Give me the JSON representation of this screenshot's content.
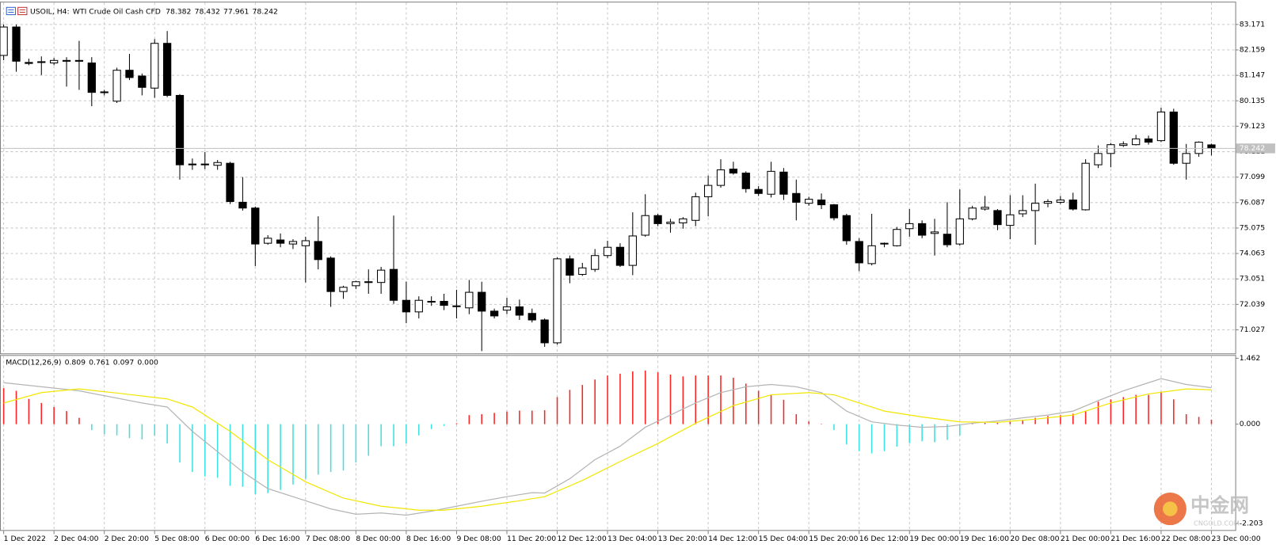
{
  "chart_data": [
    {
      "type": "candlestick",
      "title": "USOIL, H4:",
      "subtitle": "WTI Crude Oil Cash CFD",
      "categories": [
        "1 Dec 2022",
        null,
        null,
        null,
        "2 Dec 04:00",
        null,
        null,
        null,
        "2 Dec 20:00",
        null,
        null,
        null,
        "5 Dec 08:00",
        null,
        null,
        null,
        "6 Dec 00:00",
        null,
        null,
        null,
        "6 Dec 16:00",
        null,
        null,
        null,
        "7 Dec 08:00",
        null,
        null,
        null,
        "8 Dec 00:00",
        null,
        null,
        null,
        "8 Dec 16:00",
        null,
        null,
        null,
        "9 Dec 08:00",
        null,
        null,
        null,
        "11 Dec 20:00",
        null,
        null,
        null,
        "12 Dec 12:00",
        null,
        null,
        null,
        "13 Dec 04:00",
        null,
        null,
        null,
        "13 Dec 20:00",
        null,
        null,
        null,
        "14 Dec 12:00",
        null,
        null,
        null,
        "15 Dec 04:00",
        null,
        null,
        null,
        "15 Dec 20:00",
        null,
        null,
        null,
        "16 Dec 12:00",
        null,
        null,
        null,
        "19 Dec 00:00",
        null,
        null,
        null,
        "19 Dec 16:00",
        null,
        null,
        null,
        "20 Dec 08:00",
        null,
        null,
        null,
        "21 Dec 00:00",
        null,
        null,
        null,
        "21 Dec 16:00",
        null,
        null,
        null,
        "22 Dec 08:00",
        null,
        null,
        null,
        "23 Dec 00:00"
      ],
      "open": [
        81.94,
        83.07,
        81.66,
        81.67,
        81.64,
        81.71,
        81.74,
        81.64,
        80.49,
        80.12,
        81.35,
        81.12,
        80.64,
        82.42,
        80.35,
        77.62,
        77.62,
        77.57,
        77.65,
        76.1,
        75.87,
        74.47,
        74.6,
        74.44,
        74.37,
        74.54,
        73.88,
        72.55,
        72.78,
        72.91,
        72.91,
        73.43,
        72.2,
        71.74,
        72.13,
        72.16,
        71.96,
        71.9,
        72.52,
        71.77,
        71.81,
        71.94,
        71.68,
        71.42,
        70.51,
        73.85,
        73.23,
        73.43,
        73.98,
        74.31,
        73.59,
        74.79,
        75.57,
        75.25,
        75.28,
        75.38,
        76.32,
        76.77,
        77.42,
        77.26,
        76.61,
        76.42,
        77.3,
        76.45,
        76.06,
        76.19,
        76.0,
        75.57,
        74.54,
        73.66,
        74.44,
        74.37,
        75.05,
        75.25,
        74.86,
        74.83,
        74.44,
        75.44,
        75.83,
        75.77,
        75.18,
        75.64,
        75.77,
        76.06,
        76.1,
        76.19,
        75.8,
        77.59,
        78.04,
        78.36,
        78.39,
        78.62,
        78.55,
        79.69,
        77.65,
        78.04,
        78.382
      ],
      "high": [
        83.17,
        83.17,
        81.81,
        81.9,
        81.84,
        81.87,
        82.52,
        81.87,
        80.57,
        81.45,
        82.0,
        81.22,
        82.59,
        82.91,
        80.4,
        77.84,
        78.1,
        77.78,
        77.71,
        77.1,
        75.93,
        74.79,
        74.86,
        74.63,
        74.73,
        75.54,
        73.95,
        72.78,
        72.98,
        73.43,
        73.53,
        75.57,
        72.94,
        72.36,
        72.36,
        72.46,
        72.62,
        73.01,
        72.94,
        71.87,
        72.3,
        72.23,
        71.87,
        71.48,
        73.91,
        73.98,
        73.69,
        74.24,
        74.57,
        74.47,
        75.7,
        76.42,
        75.64,
        75.44,
        75.51,
        76.48,
        77.16,
        77.81,
        77.71,
        77.33,
        76.74,
        77.71,
        77.46,
        77.0,
        76.32,
        76.45,
        76.03,
        75.64,
        74.67,
        75.64,
        74.5,
        75.12,
        75.83,
        75.38,
        75.44,
        76.1,
        76.61,
        75.96,
        76.35,
        75.83,
        76.38,
        76.38,
        76.84,
        76.22,
        76.35,
        76.48,
        77.81,
        78.36,
        78.46,
        78.52,
        78.78,
        78.75,
        79.86,
        79.82,
        78.42,
        78.52,
        78.432
      ],
      "low": [
        81.75,
        81.29,
        81.55,
        81.16,
        81.55,
        80.7,
        80.57,
        79.92,
        80.35,
        80.05,
        80.96,
        80.35,
        80.25,
        80.28,
        77.0,
        77.39,
        77.42,
        77.39,
        76.03,
        75.77,
        73.56,
        74.41,
        74.31,
        74.24,
        72.91,
        73.43,
        71.94,
        72.26,
        72.65,
        72.46,
        72.46,
        72.06,
        71.29,
        71.48,
        71.98,
        71.81,
        71.48,
        71.65,
        70.18,
        71.48,
        71.65,
        71.42,
        71.32,
        70.35,
        70.44,
        72.88,
        73.17,
        73.33,
        73.88,
        73.53,
        73.2,
        74.73,
        75.15,
        74.89,
        75.05,
        75.15,
        75.54,
        76.68,
        77.2,
        76.48,
        76.35,
        76.29,
        76.19,
        75.38,
        75.96,
        75.83,
        75.38,
        74.41,
        73.36,
        73.59,
        74.31,
        74.34,
        74.73,
        74.67,
        73.98,
        74.31,
        74.37,
        75.38,
        75.77,
        74.99,
        74.63,
        75.51,
        74.41,
        75.9,
        76.03,
        75.77,
        75.77,
        77.46,
        77.49,
        78.3,
        78.36,
        78.39,
        78.49,
        77.59,
        77.0,
        77.91,
        77.961
      ],
      "close": [
        83.07,
        81.71,
        81.62,
        81.69,
        81.74,
        81.74,
        81.71,
        80.47,
        80.47,
        81.35,
        81.06,
        80.67,
        82.42,
        80.35,
        77.59,
        77.62,
        77.62,
        77.68,
        76.13,
        75.87,
        74.44,
        74.67,
        74.47,
        74.54,
        74.57,
        73.82,
        72.55,
        72.72,
        72.94,
        72.94,
        73.4,
        72.2,
        71.74,
        72.2,
        72.16,
        72.0,
        71.98,
        72.52,
        71.77,
        71.58,
        71.94,
        71.61,
        71.42,
        70.51,
        73.85,
        73.2,
        73.49,
        73.98,
        74.31,
        73.59,
        74.76,
        75.57,
        75.25,
        75.31,
        75.44,
        76.32,
        76.77,
        77.39,
        77.26,
        76.64,
        76.45,
        77.33,
        76.42,
        76.1,
        76.22,
        76.0,
        75.48,
        74.57,
        73.69,
        74.37,
        74.47,
        75.02,
        75.25,
        74.79,
        74.92,
        74.41,
        75.44,
        75.87,
        75.9,
        75.21,
        75.6,
        75.77,
        76.06,
        76.13,
        76.19,
        75.83,
        77.65,
        78.04,
        78.39,
        78.42,
        78.62,
        78.49,
        79.69,
        77.65,
        78.04,
        78.49,
        78.242
      ],
      "up_color": "#ffffff",
      "down_color": "#000000",
      "edge_color": "#000000",
      "ylim": [
        70.09,
        83.98
      ],
      "yticks": [
        83.171,
        82.159,
        81.147,
        80.135,
        79.123,
        78.111,
        77.099,
        76.087,
        75.075,
        74.063,
        73.051,
        72.039,
        71.027
      ],
      "grid": true,
      "last_price_line": true,
      "last_price_color": "#c0c0c0"
    },
    {
      "type": "macd",
      "title": "MACD(12,26,9)",
      "readout": [
        "0.809",
        "0.761",
        "0.097",
        "0.000"
      ],
      "histogram": {
        "positive_color": "#ff2020",
        "negative_color": "#3ee0e0",
        "values": [
          0.8,
          0.74,
          0.56,
          0.47,
          0.38,
          0.29,
          0.14,
          -0.13,
          -0.22,
          -0.25,
          -0.31,
          -0.34,
          -0.25,
          -0.43,
          -0.85,
          -1.06,
          -1.16,
          -1.19,
          -1.37,
          -1.39,
          -1.55,
          -1.53,
          -1.46,
          -1.34,
          -1.21,
          -1.12,
          -1.06,
          -1.03,
          -0.85,
          -0.7,
          -0.49,
          -0.49,
          -0.43,
          -0.25,
          -0.11,
          -0.04,
          0.02,
          0.2,
          0.22,
          0.25,
          0.28,
          0.3,
          0.3,
          0.31,
          0.6,
          0.76,
          0.87,
          0.99,
          1.08,
          1.12,
          1.17,
          1.19,
          1.15,
          1.1,
          1.06,
          1.08,
          1.08,
          1.08,
          1.03,
          0.9,
          0.74,
          0.65,
          0.54,
          0.22,
          0.06,
          0.01,
          -0.13,
          -0.45,
          -0.6,
          -0.65,
          -0.6,
          -0.5,
          -0.42,
          -0.38,
          -0.4,
          -0.35,
          -0.25,
          0.02,
          0.03,
          0.03,
          0.05,
          0.08,
          0.14,
          0.18,
          0.2,
          0.23,
          0.3,
          0.5,
          0.55,
          0.6,
          0.65,
          0.65,
          0.72,
          0.55,
          0.22,
          0.16,
          0.097
        ]
      },
      "series": [
        {
          "color": "#b4b4b4",
          "x": [
            0,
            6,
            11,
            13,
            15,
            17,
            19,
            21,
            23,
            26,
            28,
            30,
            32,
            34,
            36,
            38,
            40,
            42,
            43,
            45,
            47,
            49,
            51,
            53,
            55,
            57,
            59,
            61,
            63,
            65,
            67,
            69,
            71,
            73,
            75,
            77,
            79,
            81,
            83,
            85,
            87,
            89,
            91,
            92,
            94,
            96
          ],
          "values": [
            0.92,
            0.74,
            0.47,
            0.38,
            -0.16,
            -0.61,
            -1.06,
            -1.43,
            -1.61,
            -1.88,
            -2.0,
            -1.97,
            -2.02,
            -1.93,
            -1.82,
            -1.71,
            -1.61,
            -1.52,
            -1.53,
            -1.21,
            -0.79,
            -0.49,
            -0.07,
            0.2,
            0.47,
            0.7,
            0.83,
            0.88,
            0.83,
            0.7,
            0.29,
            0.05,
            -0.02,
            -0.07,
            -0.05,
            0.02,
            0.07,
            0.14,
            0.2,
            0.29,
            0.52,
            0.74,
            0.92,
            1.01,
            0.88,
            0.809
          ]
        },
        {
          "color": "#f2e600",
          "x": [
            0,
            3,
            6,
            9,
            13,
            15,
            18,
            21,
            24,
            27,
            30,
            33,
            35,
            38,
            41,
            43,
            46,
            49,
            52,
            55,
            58,
            61,
            64,
            66,
            68,
            70,
            73,
            76,
            79,
            82,
            85,
            88,
            91,
            94,
            96
          ],
          "values": [
            0.47,
            0.7,
            0.78,
            0.69,
            0.56,
            0.38,
            -0.16,
            -0.79,
            -1.28,
            -1.64,
            -1.82,
            -1.91,
            -1.91,
            -1.82,
            -1.7,
            -1.61,
            -1.25,
            -0.83,
            -0.43,
            0.02,
            0.41,
            0.65,
            0.7,
            0.65,
            0.47,
            0.29,
            0.16,
            0.05,
            0.04,
            0.11,
            0.2,
            0.47,
            0.67,
            0.78,
            0.761
          ]
        }
      ],
      "ylim": [
        -2.35,
        1.516
      ],
      "yticks": [
        1.462,
        {
          "value": 0,
          "label": "0.000"
        },
        -2.203
      ]
    }
  ],
  "watermark": {
    "name": "中金网",
    "site": "CNGOLD.COM"
  }
}
